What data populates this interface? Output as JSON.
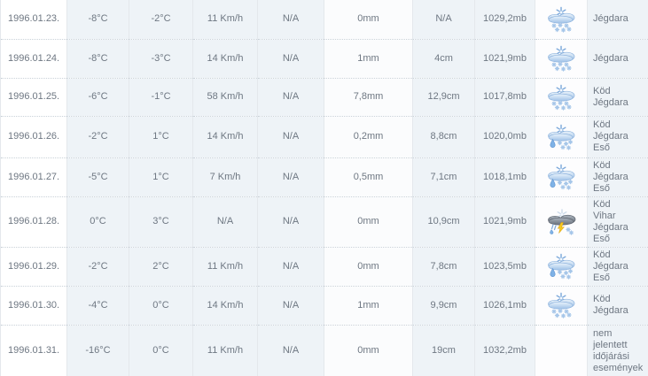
{
  "table": {
    "description": "weather-history-table",
    "rows": [
      {
        "date": "1996.01.23.",
        "temp_min": "-8°C",
        "temp_max": "-2°C",
        "wind": "11 Km/h",
        "col5": "N/A",
        "precipitation": "0mm",
        "snow_depth": "N/A",
        "pressure": "1029,2mb",
        "icon": "snow",
        "events": "Jégdara"
      },
      {
        "date": "1996.01.24.",
        "temp_min": "-8°C",
        "temp_max": "-3°C",
        "wind": "14 Km/h",
        "col5": "N/A",
        "precipitation": "1mm",
        "snow_depth": "4cm",
        "pressure": "1021,9mb",
        "icon": "snow",
        "events": "Jégdara"
      },
      {
        "date": "1996.01.25.",
        "temp_min": "-6°C",
        "temp_max": "-1°C",
        "wind": "58 Km/h",
        "col5": "N/A",
        "precipitation": "7,8mm",
        "snow_depth": "12,9cm",
        "pressure": "1017,8mb",
        "icon": "snow",
        "events": "Köd\nJégdara"
      },
      {
        "date": "1996.01.26.",
        "temp_min": "-2°C",
        "temp_max": "1°C",
        "wind": "14 Km/h",
        "col5": "N/A",
        "precipitation": "0,2mm",
        "snow_depth": "8,8cm",
        "pressure": "1020,0mb",
        "icon": "snow-rain",
        "events": "Köd\nJégdara\nEső"
      },
      {
        "date": "1996.01.27.",
        "temp_min": "-5°C",
        "temp_max": "1°C",
        "wind": "7 Km/h",
        "col5": "N/A",
        "precipitation": "0,5mm",
        "snow_depth": "7,1cm",
        "pressure": "1018,1mb",
        "icon": "snow-rain",
        "events": "Köd\nJégdara\nEső"
      },
      {
        "date": "1996.01.28.",
        "temp_min": "0°C",
        "temp_max": "3°C",
        "wind": "N/A",
        "col5": "N/A",
        "precipitation": "0mm",
        "snow_depth": "10,9cm",
        "pressure": "1021,9mb",
        "icon": "storm",
        "events": "Köd\nVihar\nJégdara\nEső"
      },
      {
        "date": "1996.01.29.",
        "temp_min": "-2°C",
        "temp_max": "2°C",
        "wind": "11 Km/h",
        "col5": "N/A",
        "precipitation": "0mm",
        "snow_depth": "7,8cm",
        "pressure": "1023,5mb",
        "icon": "snow-rain",
        "events": "Köd\nJégdara\nEső"
      },
      {
        "date": "1996.01.30.",
        "temp_min": "-4°C",
        "temp_max": "0°C",
        "wind": "14 Km/h",
        "col5": "N/A",
        "precipitation": "1mm",
        "snow_depth": "9,9cm",
        "pressure": "1026,1mb",
        "icon": "snow",
        "events": "Köd\nJégdara"
      },
      {
        "date": "1996.01.31.",
        "temp_min": "-16°C",
        "temp_max": "0°C",
        "wind": "11 Km/h",
        "col5": "N/A",
        "precipitation": "0mm",
        "snow_depth": "19cm",
        "pressure": "1032,2mb",
        "icon": "none",
        "events": "nem jelentett időjárási események"
      }
    ]
  },
  "icons": {
    "snow": "snow-cloud-icon",
    "snow-rain": "snow-rain-cloud-icon",
    "storm": "thunderstorm-snow-cloud-icon",
    "none": ""
  },
  "colors": {
    "column_tint": "#eef3f7",
    "text": "#6e7782",
    "divider": "#e4e8ec",
    "row_separator": "#c9d1d8",
    "cloud_blue": "#9fc2e8",
    "storm_cloud": "#6e7681",
    "lightning": "#f6c91e",
    "raindrop": "#7fb2e6"
  }
}
